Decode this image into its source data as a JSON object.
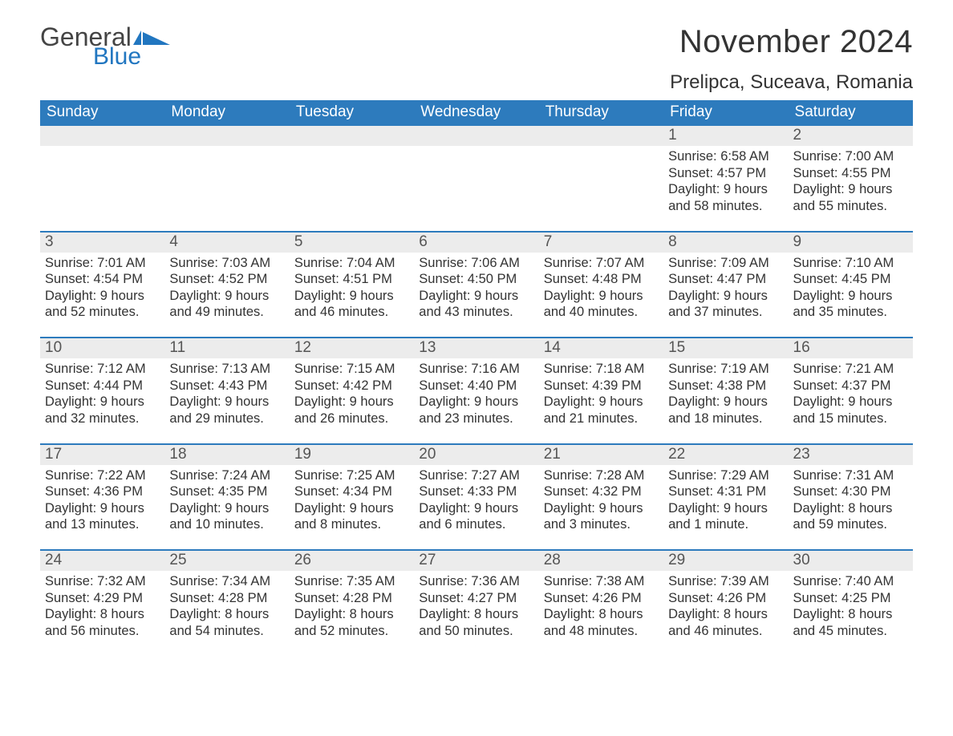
{
  "logo": {
    "text_general": "General",
    "text_blue": "Blue",
    "shape_color": "#2176c0"
  },
  "title": {
    "month": "November 2024",
    "location": "Prelipca, Suceava, Romania",
    "month_fontsize": 40,
    "location_fontsize": 24,
    "text_color": "#333333"
  },
  "calendar": {
    "header_bg": "#2d7bbd",
    "header_text_color": "#ffffff",
    "row_divider_color": "#2d7bbd",
    "daynum_bg": "#ececec",
    "daynum_color": "#555555",
    "body_text_color": "#333333",
    "background_color": "#ffffff",
    "days_of_week": [
      "Sunday",
      "Monday",
      "Tuesday",
      "Wednesday",
      "Thursday",
      "Friday",
      "Saturday"
    ],
    "weeks": [
      [
        {
          "day": "",
          "sunrise": "",
          "sunset": "",
          "daylight": ""
        },
        {
          "day": "",
          "sunrise": "",
          "sunset": "",
          "daylight": ""
        },
        {
          "day": "",
          "sunrise": "",
          "sunset": "",
          "daylight": ""
        },
        {
          "day": "",
          "sunrise": "",
          "sunset": "",
          "daylight": ""
        },
        {
          "day": "",
          "sunrise": "",
          "sunset": "",
          "daylight": ""
        },
        {
          "day": "1",
          "sunrise": "Sunrise: 6:58 AM",
          "sunset": "Sunset: 4:57 PM",
          "daylight": "Daylight: 9 hours and 58 minutes."
        },
        {
          "day": "2",
          "sunrise": "Sunrise: 7:00 AM",
          "sunset": "Sunset: 4:55 PM",
          "daylight": "Daylight: 9 hours and 55 minutes."
        }
      ],
      [
        {
          "day": "3",
          "sunrise": "Sunrise: 7:01 AM",
          "sunset": "Sunset: 4:54 PM",
          "daylight": "Daylight: 9 hours and 52 minutes."
        },
        {
          "day": "4",
          "sunrise": "Sunrise: 7:03 AM",
          "sunset": "Sunset: 4:52 PM",
          "daylight": "Daylight: 9 hours and 49 minutes."
        },
        {
          "day": "5",
          "sunrise": "Sunrise: 7:04 AM",
          "sunset": "Sunset: 4:51 PM",
          "daylight": "Daylight: 9 hours and 46 minutes."
        },
        {
          "day": "6",
          "sunrise": "Sunrise: 7:06 AM",
          "sunset": "Sunset: 4:50 PM",
          "daylight": "Daylight: 9 hours and 43 minutes."
        },
        {
          "day": "7",
          "sunrise": "Sunrise: 7:07 AM",
          "sunset": "Sunset: 4:48 PM",
          "daylight": "Daylight: 9 hours and 40 minutes."
        },
        {
          "day": "8",
          "sunrise": "Sunrise: 7:09 AM",
          "sunset": "Sunset: 4:47 PM",
          "daylight": "Daylight: 9 hours and 37 minutes."
        },
        {
          "day": "9",
          "sunrise": "Sunrise: 7:10 AM",
          "sunset": "Sunset: 4:45 PM",
          "daylight": "Daylight: 9 hours and 35 minutes."
        }
      ],
      [
        {
          "day": "10",
          "sunrise": "Sunrise: 7:12 AM",
          "sunset": "Sunset: 4:44 PM",
          "daylight": "Daylight: 9 hours and 32 minutes."
        },
        {
          "day": "11",
          "sunrise": "Sunrise: 7:13 AM",
          "sunset": "Sunset: 4:43 PM",
          "daylight": "Daylight: 9 hours and 29 minutes."
        },
        {
          "day": "12",
          "sunrise": "Sunrise: 7:15 AM",
          "sunset": "Sunset: 4:42 PM",
          "daylight": "Daylight: 9 hours and 26 minutes."
        },
        {
          "day": "13",
          "sunrise": "Sunrise: 7:16 AM",
          "sunset": "Sunset: 4:40 PM",
          "daylight": "Daylight: 9 hours and 23 minutes."
        },
        {
          "day": "14",
          "sunrise": "Sunrise: 7:18 AM",
          "sunset": "Sunset: 4:39 PM",
          "daylight": "Daylight: 9 hours and 21 minutes."
        },
        {
          "day": "15",
          "sunrise": "Sunrise: 7:19 AM",
          "sunset": "Sunset: 4:38 PM",
          "daylight": "Daylight: 9 hours and 18 minutes."
        },
        {
          "day": "16",
          "sunrise": "Sunrise: 7:21 AM",
          "sunset": "Sunset: 4:37 PM",
          "daylight": "Daylight: 9 hours and 15 minutes."
        }
      ],
      [
        {
          "day": "17",
          "sunrise": "Sunrise: 7:22 AM",
          "sunset": "Sunset: 4:36 PM",
          "daylight": "Daylight: 9 hours and 13 minutes."
        },
        {
          "day": "18",
          "sunrise": "Sunrise: 7:24 AM",
          "sunset": "Sunset: 4:35 PM",
          "daylight": "Daylight: 9 hours and 10 minutes."
        },
        {
          "day": "19",
          "sunrise": "Sunrise: 7:25 AM",
          "sunset": "Sunset: 4:34 PM",
          "daylight": "Daylight: 9 hours and 8 minutes."
        },
        {
          "day": "20",
          "sunrise": "Sunrise: 7:27 AM",
          "sunset": "Sunset: 4:33 PM",
          "daylight": "Daylight: 9 hours and 6 minutes."
        },
        {
          "day": "21",
          "sunrise": "Sunrise: 7:28 AM",
          "sunset": "Sunset: 4:32 PM",
          "daylight": "Daylight: 9 hours and 3 minutes."
        },
        {
          "day": "22",
          "sunrise": "Sunrise: 7:29 AM",
          "sunset": "Sunset: 4:31 PM",
          "daylight": "Daylight: 9 hours and 1 minute."
        },
        {
          "day": "23",
          "sunrise": "Sunrise: 7:31 AM",
          "sunset": "Sunset: 4:30 PM",
          "daylight": "Daylight: 8 hours and 59 minutes."
        }
      ],
      [
        {
          "day": "24",
          "sunrise": "Sunrise: 7:32 AM",
          "sunset": "Sunset: 4:29 PM",
          "daylight": "Daylight: 8 hours and 56 minutes."
        },
        {
          "day": "25",
          "sunrise": "Sunrise: 7:34 AM",
          "sunset": "Sunset: 4:28 PM",
          "daylight": "Daylight: 8 hours and 54 minutes."
        },
        {
          "day": "26",
          "sunrise": "Sunrise: 7:35 AM",
          "sunset": "Sunset: 4:28 PM",
          "daylight": "Daylight: 8 hours and 52 minutes."
        },
        {
          "day": "27",
          "sunrise": "Sunrise: 7:36 AM",
          "sunset": "Sunset: 4:27 PM",
          "daylight": "Daylight: 8 hours and 50 minutes."
        },
        {
          "day": "28",
          "sunrise": "Sunrise: 7:38 AM",
          "sunset": "Sunset: 4:26 PM",
          "daylight": "Daylight: 8 hours and 48 minutes."
        },
        {
          "day": "29",
          "sunrise": "Sunrise: 7:39 AM",
          "sunset": "Sunset: 4:26 PM",
          "daylight": "Daylight: 8 hours and 46 minutes."
        },
        {
          "day": "30",
          "sunrise": "Sunrise: 7:40 AM",
          "sunset": "Sunset: 4:25 PM",
          "daylight": "Daylight: 8 hours and 45 minutes."
        }
      ]
    ]
  }
}
